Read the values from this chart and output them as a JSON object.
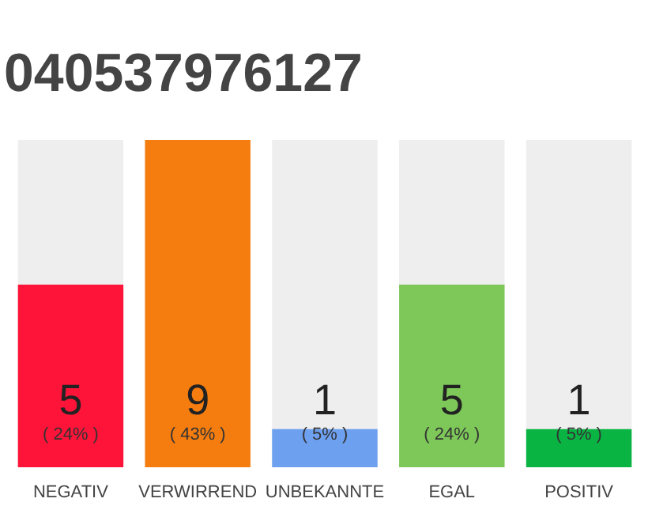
{
  "chart_data": {
    "type": "bar",
    "title": "040537976127",
    "categories": [
      "NEGATIV",
      "VERWIRREND",
      "UNBEKANNTE",
      "EGAL",
      "POSITIV"
    ],
    "values": [
      24,
      43,
      5,
      24,
      5
    ],
    "colors": [
      "#ff1439",
      "#f57d0f",
      "#6ea0f0",
      "#7ec85a",
      "#0ab443"
    ],
    "value_labels": [
      "( 24% )",
      "( 43% )",
      "( 5% )",
      "( 24% )",
      "( 5% )"
    ],
    "annotations": [
      "5",
      "9",
      "1",
      "5",
      "1"
    ],
    "grid": false,
    "tick_labels": "x"
  }
}
